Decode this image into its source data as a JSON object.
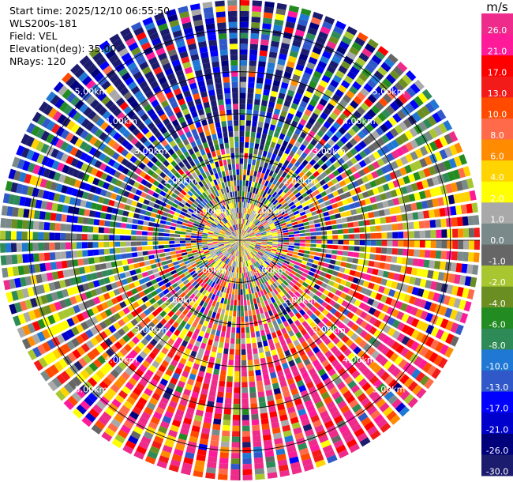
{
  "header": {
    "start_time": "Start time: 2025/12/10 06:55:50",
    "instrument": "WLS200s-181",
    "field": "Field: VEL",
    "elevation": "Elevation(deg): 35.00",
    "nrays": "NRays: 120"
  },
  "colorbar": {
    "unit": "m/s",
    "levels": [
      {
        "label": "26.0",
        "color": "#ee2a8a"
      },
      {
        "label": "21.0",
        "color": "#ff1a9a"
      },
      {
        "label": "17.0",
        "color": "#ff0000"
      },
      {
        "label": "13.0",
        "color": "#f31a1a"
      },
      {
        "label": "10.0",
        "color": "#ff4a00"
      },
      {
        "label": "8.0",
        "color": "#ff6b4a"
      },
      {
        "label": "6.0",
        "color": "#ff8c00"
      },
      {
        "label": "4.0",
        "color": "#ffd400"
      },
      {
        "label": "2.0",
        "color": "#ffff00"
      },
      {
        "label": "1.0",
        "color": "#a9a9a9"
      },
      {
        "label": "0.0",
        "color": "#7a8a8a"
      },
      {
        "label": "-1.0",
        "color": "#666666"
      },
      {
        "label": "-2.0",
        "color": "#a8c630"
      },
      {
        "label": "-4.0",
        "color": "#6b8e23"
      },
      {
        "label": "-6.0",
        "color": "#228b22"
      },
      {
        "label": "-8.0",
        "color": "#2e8b57"
      },
      {
        "label": "-10.0",
        "color": "#1f78d4"
      },
      {
        "label": "-13.0",
        "color": "#3058c8"
      },
      {
        "label": "-17.0",
        "color": "#0000ff"
      },
      {
        "label": "-21.0",
        "color": "#0000cc"
      },
      {
        "label": "-26.0",
        "color": "#00007a"
      },
      {
        "label": "-30.0",
        "color": "#1c1c6e"
      }
    ]
  },
  "chart_data": {
    "type": "heatmap",
    "projection": "polar-ppi",
    "field": "VEL",
    "nrays": 120,
    "range_rings_km": [
      1,
      2,
      3,
      4,
      5
    ],
    "range_ring_labels": [
      "1.00km",
      "2.00km",
      "3.00km",
      "4.00km",
      "5.00km"
    ],
    "dominant_pattern": {
      "west_northwest": "negative (-17 to -30 m/s)",
      "east_southeast": "positive (13 to 26 m/s)",
      "center": "noisy near-zero / mixed values"
    }
  }
}
